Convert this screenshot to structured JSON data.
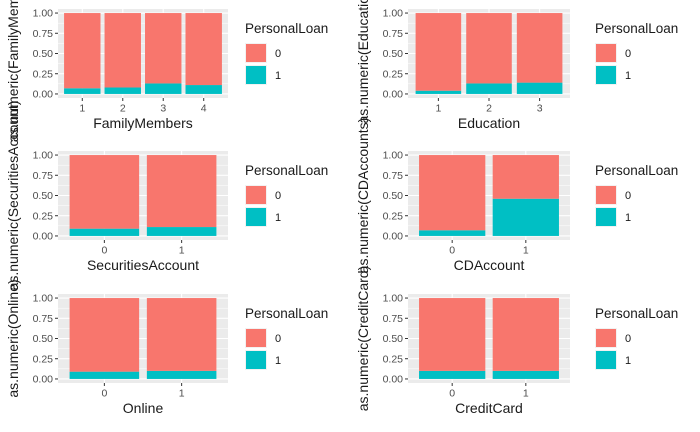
{
  "colors": {
    "panel_bg": "#ebebeb",
    "grid_major": "#ffffff",
    "loan_0": "#F8766D",
    "loan_1": "#00BFC4"
  },
  "legend": {
    "title": "PersonalLoan",
    "labels": [
      "0",
      "1"
    ]
  },
  "chart_data": [
    {
      "type": "bar",
      "stacked": true,
      "position": "fill",
      "xlabel": "FamilyMembers",
      "ylabel": "as.numeric(FamilyMembers)",
      "categories": [
        "1",
        "2",
        "3",
        "4"
      ],
      "series": [
        {
          "name": "0",
          "values": [
            0.93,
            0.92,
            0.87,
            0.89
          ]
        },
        {
          "name": "1",
          "values": [
            0.07,
            0.08,
            0.13,
            0.11
          ]
        }
      ],
      "yticks": [
        "0.00",
        "0.25",
        "0.50",
        "0.75",
        "1.00"
      ],
      "ylim": [
        0,
        1
      ],
      "legend_position": "right"
    },
    {
      "type": "bar",
      "stacked": true,
      "position": "fill",
      "xlabel": "Education",
      "ylabel": "as.numeric(Education)",
      "categories": [
        "1",
        "2",
        "3"
      ],
      "series": [
        {
          "name": "0",
          "values": [
            0.96,
            0.87,
            0.86
          ]
        },
        {
          "name": "1",
          "values": [
            0.04,
            0.13,
            0.14
          ]
        }
      ],
      "yticks": [
        "0.00",
        "0.25",
        "0.50",
        "0.75",
        "1.00"
      ],
      "ylim": [
        0,
        1
      ],
      "legend_position": "right"
    },
    {
      "type": "bar",
      "stacked": true,
      "position": "fill",
      "xlabel": "SecuritiesAccount",
      "ylabel": "as.numeric(SecuritiesAccount)",
      "categories": [
        "0",
        "1"
      ],
      "series": [
        {
          "name": "0",
          "values": [
            0.91,
            0.89
          ]
        },
        {
          "name": "1",
          "values": [
            0.09,
            0.11
          ]
        }
      ],
      "yticks": [
        "0.00",
        "0.25",
        "0.50",
        "0.75",
        "1.00"
      ],
      "ylim": [
        0,
        1
      ],
      "legend_position": "right"
    },
    {
      "type": "bar",
      "stacked": true,
      "position": "fill",
      "xlabel": "CDAccount",
      "ylabel": "as.numeric(CDAccounts)",
      "categories": [
        "0",
        "1"
      ],
      "series": [
        {
          "name": "0",
          "values": [
            0.93,
            0.54
          ]
        },
        {
          "name": "1",
          "values": [
            0.07,
            0.46
          ]
        }
      ],
      "yticks": [
        "0.00",
        "0.25",
        "0.50",
        "0.75",
        "1.00"
      ],
      "ylim": [
        0,
        1
      ],
      "legend_position": "right"
    },
    {
      "type": "bar",
      "stacked": true,
      "position": "fill",
      "xlabel": "Online",
      "ylabel": "as.numeric(Online)",
      "categories": [
        "0",
        "1"
      ],
      "series": [
        {
          "name": "0",
          "values": [
            0.91,
            0.9
          ]
        },
        {
          "name": "1",
          "values": [
            0.09,
            0.1
          ]
        }
      ],
      "yticks": [
        "0.00",
        "0.25",
        "0.50",
        "0.75",
        "1.00"
      ],
      "ylim": [
        0,
        1
      ],
      "legend_position": "right"
    },
    {
      "type": "bar",
      "stacked": true,
      "position": "fill",
      "xlabel": "CreditCard",
      "ylabel": "as.numeric(CreditCard)",
      "categories": [
        "0",
        "1"
      ],
      "series": [
        {
          "name": "0",
          "values": [
            0.9,
            0.9
          ]
        },
        {
          "name": "1",
          "values": [
            0.1,
            0.1
          ]
        }
      ],
      "yticks": [
        "0.00",
        "0.25",
        "0.50",
        "0.75",
        "1.00"
      ],
      "ylim": [
        0,
        1
      ],
      "legend_position": "right"
    }
  ]
}
